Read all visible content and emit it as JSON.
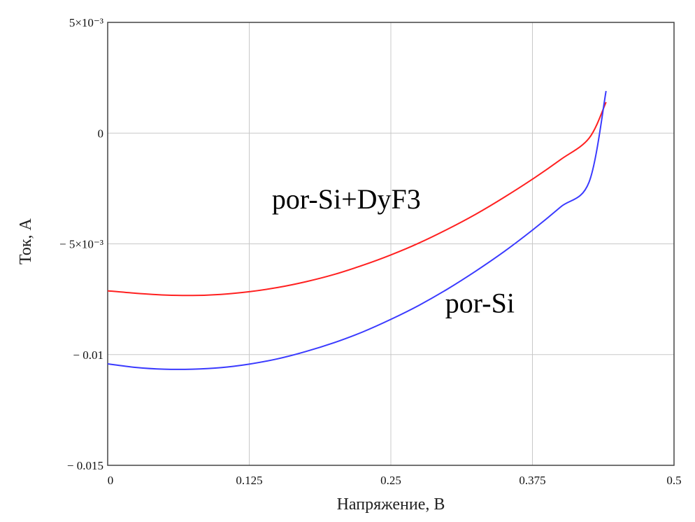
{
  "chart_data": {
    "type": "line",
    "title": "",
    "xlabel": "Напряжение, В",
    "ylabel": "Ток, А",
    "xlim": [
      0,
      0.5
    ],
    "ylim": [
      -0.015,
      0.005
    ],
    "grid": true,
    "x_ticks": [
      "0",
      "0.125",
      "0.25",
      "0.375",
      "0.5"
    ],
    "y_ticks": [
      "5×10⁻³",
      "0",
      "− 5×10⁻³",
      "− 0.01",
      "− 0.015"
    ],
    "series": [
      {
        "name": "por-Si+DyF3",
        "color": "#ff2020",
        "x": [
          0,
          0.025,
          0.05,
          0.075,
          0.1,
          0.125,
          0.15,
          0.175,
          0.2,
          0.225,
          0.25,
          0.275,
          0.3,
          0.325,
          0.35,
          0.375,
          0.4,
          0.425,
          0.44
        ],
        "y": [
          -0.00712,
          -0.00723,
          -0.00731,
          -0.00733,
          -0.00728,
          -0.00716,
          -0.00697,
          -0.00671,
          -0.00638,
          -0.00597,
          -0.0055,
          -0.00496,
          -0.00434,
          -0.00366,
          -0.0029,
          -0.00208,
          -0.00119,
          -0.00023,
          0.0014
        ]
      },
      {
        "name": "por-Si",
        "color": "#3a3aff",
        "x": [
          0,
          0.025,
          0.05,
          0.075,
          0.1,
          0.125,
          0.15,
          0.175,
          0.2,
          0.225,
          0.25,
          0.275,
          0.3,
          0.325,
          0.35,
          0.375,
          0.4,
          0.425,
          0.44
        ],
        "y": [
          -0.01042,
          -0.01058,
          -0.01066,
          -0.01066,
          -0.01059,
          -0.01043,
          -0.01019,
          -0.00986,
          -0.00946,
          -0.00898,
          -0.00841,
          -0.00777,
          -0.00704,
          -0.00623,
          -0.00535,
          -0.00438,
          -0.00333,
          -0.00221,
          0.0019
        ]
      }
    ],
    "annotations": [
      {
        "text": "por-Si+DyF3",
        "x": 0.145,
        "y": -0.0034
      },
      {
        "text": "por-Si",
        "x": 0.298,
        "y": -0.0081
      }
    ]
  }
}
